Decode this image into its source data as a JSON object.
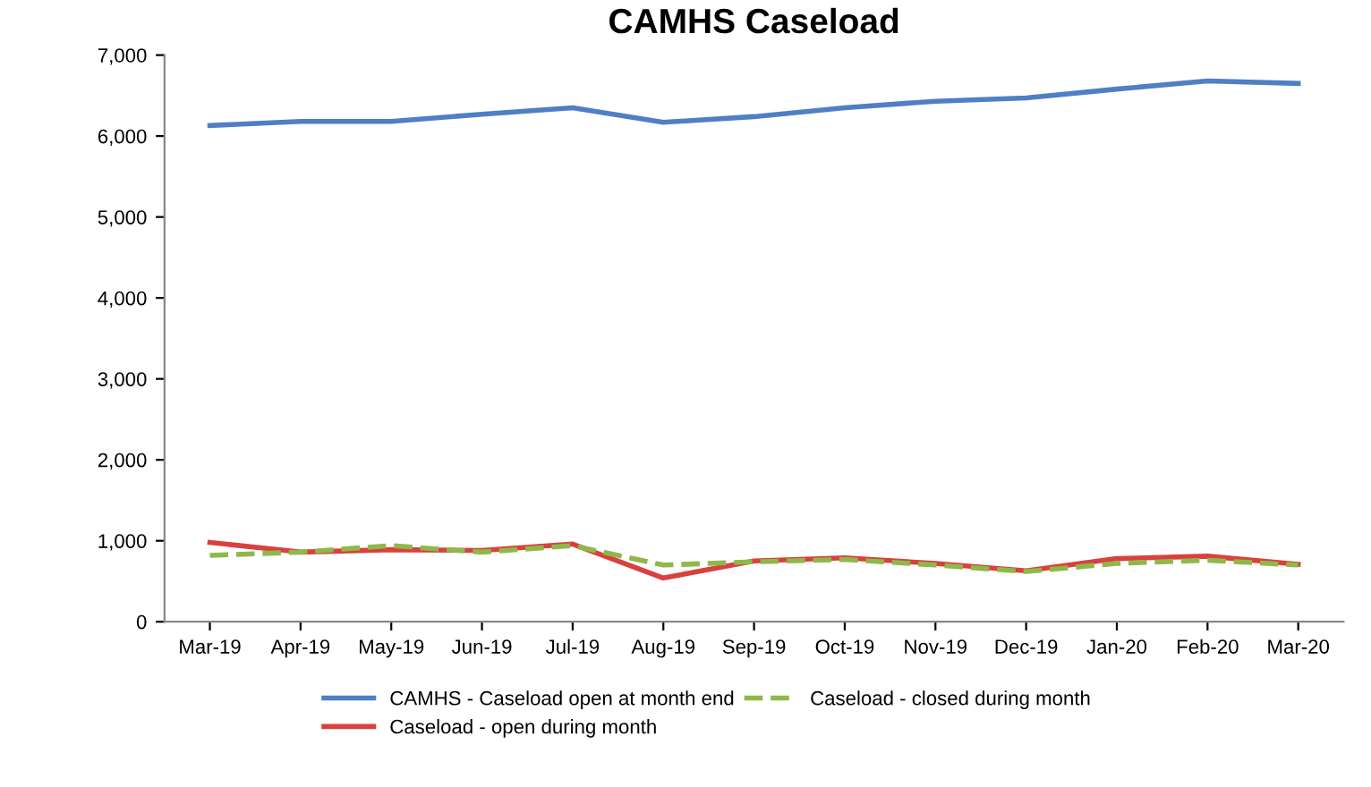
{
  "chart_data": {
    "type": "line",
    "title": "CAMHS Caseload",
    "categories": [
      "Mar-19",
      "Apr-19",
      "May-19",
      "Jun-19",
      "Jul-19",
      "Aug-19",
      "Sep-19",
      "Oct-19",
      "Nov-19",
      "Dec-19",
      "Jan-20",
      "Feb-20",
      "Mar-20"
    ],
    "series": [
      {
        "name": "CAMHS - Caseload open at month end",
        "color": "#4f7fc4",
        "values": [
          6130,
          6180,
          6180,
          6270,
          6350,
          6170,
          6240,
          6350,
          6430,
          6470,
          6580,
          6680,
          6650
        ]
      },
      {
        "name": "Caseload - open during month",
        "color": "#d9413e",
        "values": [
          980,
          860,
          890,
          880,
          960,
          540,
          750,
          790,
          720,
          630,
          780,
          810,
          710
        ]
      },
      {
        "name": "Caseload - closed during month",
        "color": "#8fb84a",
        "line_style": "dashed",
        "values": [
          820,
          860,
          940,
          860,
          940,
          700,
          740,
          770,
          700,
          620,
          720,
          760,
          700
        ]
      }
    ],
    "ylim": [
      0,
      7000
    ],
    "yticks": [
      {
        "value": 0,
        "label": "0"
      },
      {
        "value": 1000,
        "label": "1,000"
      },
      {
        "value": 2000,
        "label": "2,000"
      },
      {
        "value": 3000,
        "label": "3,000"
      },
      {
        "value": 4000,
        "label": "4,000"
      },
      {
        "value": 5000,
        "label": "5,000"
      },
      {
        "value": 6000,
        "label": "6,000"
      },
      {
        "value": 7000,
        "label": "7,000"
      }
    ],
    "grid": false,
    "legend": "bottom"
  }
}
